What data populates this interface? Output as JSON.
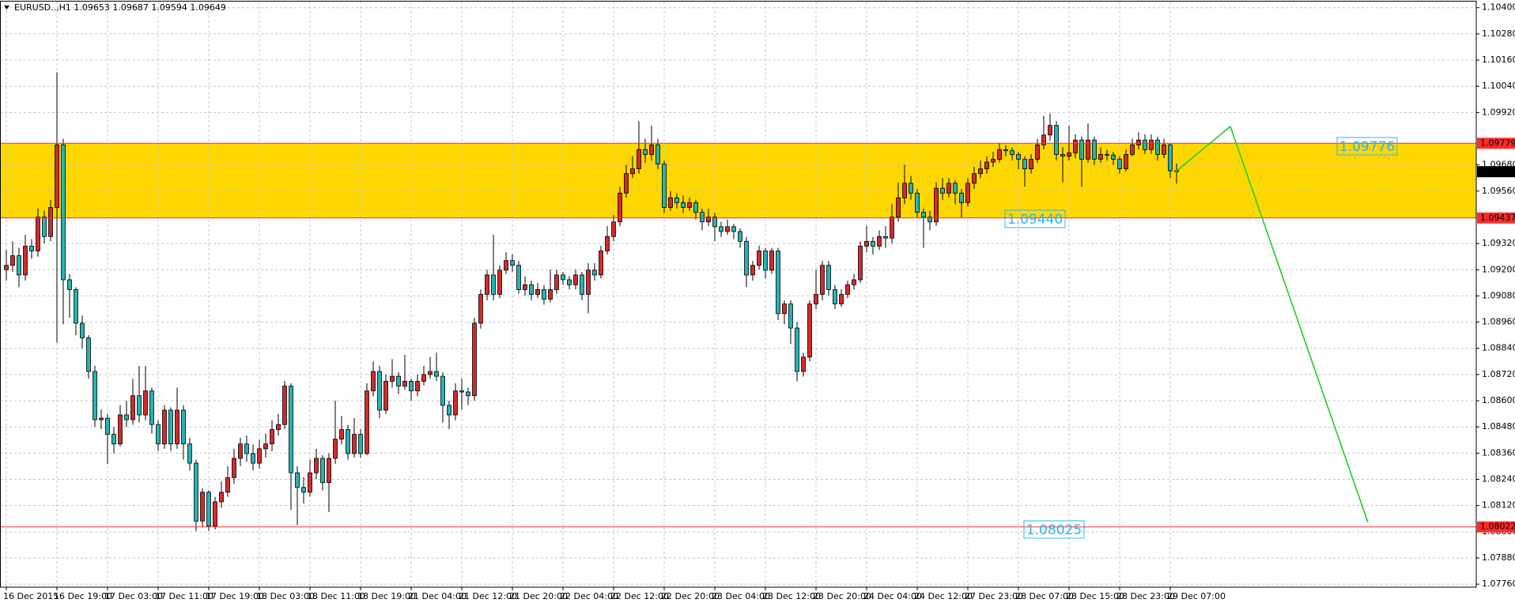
{
  "chart_data": {
    "type": "candlestick",
    "title": "EURUSD..,H1  1.09653 1.09687 1.09594 1.09649",
    "categories": [
      "16 Dec 2015",
      null,
      null,
      null,
      null,
      null,
      null,
      null,
      "16 Dec 19:00",
      null,
      null,
      null,
      null,
      null,
      null,
      null,
      "17 Dec 03:00",
      null,
      null,
      null,
      null,
      null,
      null,
      null,
      "17 Dec 11:00",
      null,
      null,
      null,
      null,
      null,
      null,
      null,
      "17 Dec 19:00",
      null,
      null,
      null,
      null,
      null,
      null,
      null,
      "18 Dec 03:00",
      null,
      null,
      null,
      null,
      null,
      null,
      null,
      "18 Dec 11:00",
      null,
      null,
      null,
      null,
      null,
      null,
      null,
      "18 Dec 19:00",
      null,
      null,
      null,
      null,
      null,
      null,
      null,
      "21 Dec 04:00",
      null,
      null,
      null,
      null,
      null,
      null,
      null,
      "21 Dec 12:00",
      null,
      null,
      null,
      null,
      null,
      null,
      null,
      "21 Dec 20:00",
      null,
      null,
      null,
      null,
      null,
      null,
      null,
      "22 Dec 04:00",
      null,
      null,
      null,
      null,
      null,
      null,
      null,
      "22 Dec 12:00",
      null,
      null,
      null,
      null,
      null,
      null,
      null,
      "22 Dec 20:00",
      null,
      null,
      null,
      null,
      null,
      null,
      null,
      "23 Dec 04:00",
      null,
      null,
      null,
      null,
      null,
      null,
      null,
      "23 Dec 12:00",
      null,
      null,
      null,
      null,
      null,
      null,
      null,
      "23 Dec 20:00",
      null,
      null,
      null,
      null,
      null,
      null,
      null,
      "24 Dec 04:00",
      null,
      null,
      null,
      null,
      null,
      null,
      null,
      "24 Dec 12:00",
      null,
      null,
      null,
      null,
      null,
      null,
      null,
      "27 Dec 23:00",
      null,
      null,
      null,
      null,
      null,
      null,
      null,
      "28 Dec 07:00",
      null,
      null,
      null,
      null,
      null,
      null,
      null,
      "28 Dec 15:00",
      null,
      null,
      null,
      null,
      null,
      null,
      null,
      "28 Dec 23:00",
      null,
      null,
      null,
      null,
      null,
      null,
      null,
      "29 Dec 07:00",
      null
    ],
    "open": [
      1.092,
      1.0922,
      1.09264,
      1.09176,
      1.09308,
      1.09286,
      1.09441,
      1.09352,
      1.09485,
      1.09772,
      1.09154,
      1.09109,
      1.08955,
      1.08888,
      1.08734,
      1.08513,
      1.0852,
      1.08446,
      1.08402,
      1.08535,
      1.08513,
      1.08623,
      1.08535,
      1.08645,
      1.08491,
      1.08402,
      1.08557,
      1.08402,
      1.08557,
      1.08402,
      1.08314,
      1.08049,
      1.08181,
      1.08026,
      1.08137,
      1.08181,
      1.08248,
      1.08336,
      1.08402,
      1.08358,
      1.08314,
      1.0838,
      1.08402,
      1.08468,
      1.08491,
      1.08667,
      1.0827,
      1.08203,
      1.08181,
      1.0827,
      1.08336,
      1.08225,
      1.08336,
      1.08424,
      1.08468,
      1.08358,
      1.08446,
      1.08358,
      1.08645,
      1.08734,
      1.08557,
      1.08689,
      1.08712,
      1.08667,
      1.08689,
      1.08645,
      1.08689,
      1.0872,
      1.08734,
      1.08712,
      1.08579,
      1.08535,
      1.08645,
      1.0864,
      1.08623,
      1.08955,
      1.09087,
      1.09176,
      1.09087,
      1.09198,
      1.09242,
      1.0922,
      1.09109,
      1.09131,
      1.09087,
      1.09109,
      1.09065,
      1.09109,
      1.09176,
      1.09154,
      1.09131,
      1.09176,
      1.09087,
      1.09198,
      1.09176,
      1.09286,
      1.09352,
      1.09419,
      1.09551,
      1.0964,
      1.09662,
      1.0975,
      1.09728,
      1.09772,
      1.09684,
      1.09485,
      1.09529,
      1.09507,
      1.09485,
      1.09507,
      1.09463,
      1.09419,
      1.09441,
      1.09397,
      1.09375,
      1.09397,
      1.09375,
      1.0933,
      1.09176,
      1.0922,
      1.09286,
      1.09198,
      1.09286,
      1.08999,
      1.09043,
      1.08933,
      1.08734,
      1.088,
      1.09043,
      1.09087,
      1.0922,
      1.09109,
      1.09043,
      1.09087,
      1.09131,
      1.09154,
      1.09308,
      1.0933,
      1.09308,
      1.09352,
      1.09345,
      1.09441,
      1.09529,
      1.09596,
      1.09551,
      1.09463,
      1.09441,
      1.09419,
      1.09573,
      1.09551,
      1.09596,
      1.09551,
      1.09507,
      1.09596,
      1.0964,
      1.09662,
      1.09693,
      1.09706,
      1.0975,
      1.09745,
      1.09728,
      1.09706,
      1.09662,
      1.09706,
      1.09772,
      1.09817,
      1.09861,
      1.09728,
      1.0972,
      1.09735,
      1.09794,
      1.09706,
      1.09794,
      1.09706,
      1.09728,
      1.09725,
      1.09706,
      1.09662,
      1.09728,
      1.09772,
      1.09794,
      1.0975,
      1.09794,
      1.09728,
      1.09772,
      1.09653
    ],
    "high": [
      1.0929,
      1.0933,
      1.093,
      1.0936,
      1.0934,
      1.0948,
      1.0947,
      1.0952,
      1.10104,
      1.098,
      1.0918,
      1.0912,
      1.0899,
      1.089,
      1.0876,
      1.0856,
      1.0854,
      1.0848,
      1.0858,
      1.086,
      1.087,
      1.0876,
      1.0876,
      1.0866,
      1.0851,
      1.0858,
      1.0857,
      1.0866,
      1.0858,
      1.0843,
      1.0833,
      1.082,
      1.0819,
      1.0816,
      1.0823,
      1.083,
      1.0838,
      1.0843,
      1.0844,
      1.084,
      1.0842,
      1.0845,
      1.0851,
      1.0854,
      1.0869,
      1.0868,
      1.083,
      1.0825,
      1.0833,
      1.0838,
      1.0835,
      1.0836,
      1.086,
      1.0853,
      1.0849,
      1.0852,
      1.0847,
      1.0868,
      1.0878,
      1.0876,
      1.0872,
      1.0879,
      1.0873,
      1.0881,
      1.087,
      1.0872,
      1.0876,
      1.088,
      1.0882,
      1.0873,
      1.086,
      1.0868,
      1.087,
      1.0866,
      1.0898,
      1.0911,
      1.092,
      1.0936,
      1.0922,
      1.0928,
      1.0927,
      1.0924,
      1.0917,
      1.0915,
      1.0914,
      1.0913,
      1.092,
      1.092,
      1.0919,
      1.0917,
      1.092,
      1.0919,
      1.0923,
      1.0923,
      1.0931,
      1.094,
      1.0945,
      1.0958,
      1.0968,
      1.0972,
      1.0988,
      1.098,
      1.0986,
      1.098,
      1.097,
      1.0956,
      1.0955,
      1.0954,
      1.0953,
      1.0952,
      1.0948,
      1.0948,
      1.0946,
      1.0942,
      1.0943,
      1.0941,
      1.0939,
      1.0935,
      1.0924,
      1.0931,
      1.093,
      1.093,
      1.093,
      1.0906,
      1.0906,
      1.0896,
      1.0882,
      1.0906,
      1.092,
      1.0924,
      1.0924,
      1.0913,
      1.0911,
      1.0915,
      1.0918,
      1.0933,
      1.094,
      1.0935,
      1.0938,
      1.094,
      1.095,
      1.096,
      1.0968,
      1.0963,
      1.0957,
      1.0948,
      1.0947,
      1.096,
      1.0962,
      1.0962,
      1.0961,
      1.0957,
      1.0962,
      1.0967,
      1.097,
      1.0972,
      1.0974,
      1.0978,
      1.0977,
      1.0976,
      1.0974,
      1.0972,
      1.0973,
      1.098,
      1.09905,
      1.09914,
      1.0988,
      1.0976,
      1.0986,
      1.0982,
      1.0981,
      1.0987,
      1.0981,
      1.0976,
      1.0975,
      1.0974,
      1.0972,
      1.0975,
      1.098,
      1.0983,
      1.0982,
      1.0982,
      1.0981,
      1.098,
      1.0978,
      1.09687
    ],
    "low": [
      1.0915,
      1.0919,
      1.0912,
      1.0915,
      1.0925,
      1.0926,
      1.0932,
      1.0933,
      1.08866,
      1.0895,
      1.0898,
      1.089,
      1.0884,
      1.087,
      1.0848,
      1.0847,
      1.0831,
      1.0836,
      1.0839,
      1.0848,
      1.0849,
      1.085,
      1.0851,
      1.0845,
      1.0837,
      1.0838,
      1.0837,
      1.0838,
      1.0833,
      1.0828,
      1.08004,
      1.0802,
      1.08004,
      1.0801,
      1.0811,
      1.0816,
      1.0822,
      1.083,
      1.0832,
      1.0828,
      1.0829,
      1.0834,
      1.0837,
      1.0844,
      1.0847,
      1.081,
      1.0803,
      1.0813,
      1.0816,
      1.0824,
      1.0819,
      1.0809,
      1.0831,
      1.084,
      1.0833,
      1.0834,
      1.0834,
      1.0835,
      1.0862,
      1.0852,
      1.0854,
      1.0866,
      1.0863,
      1.0865,
      1.086,
      1.0862,
      1.0867,
      1.087,
      1.0869,
      1.085,
      1.0847,
      1.0851,
      1.0856,
      1.0858,
      1.086,
      1.0893,
      1.0906,
      1.0906,
      1.0907,
      1.0918,
      1.0919,
      1.0909,
      1.0908,
      1.0906,
      1.0907,
      1.0904,
      1.0905,
      1.0909,
      1.0913,
      1.0911,
      1.0911,
      1.0906,
      1.09,
      1.0915,
      1.0916,
      1.0927,
      1.0933,
      1.094,
      1.0953,
      1.0962,
      1.0964,
      1.0969,
      1.097,
      1.0966,
      1.0946,
      1.0947,
      1.0948,
      1.0946,
      1.0947,
      1.0943,
      1.0938,
      1.094,
      1.0933,
      1.0935,
      1.0936,
      1.0934,
      1.093,
      1.0912,
      1.0915,
      1.092,
      1.0916,
      1.0918,
      1.0897,
      1.0895,
      1.0886,
      1.08689,
      1.0871,
      1.0878,
      1.0902,
      1.0906,
      1.0908,
      1.0902,
      1.0903,
      1.0907,
      1.0911,
      1.0914,
      1.0928,
      1.0927,
      1.0929,
      1.093,
      1.0932,
      1.0942,
      1.095,
      1.0952,
      1.0944,
      1.093,
      1.0938,
      1.094,
      1.0952,
      1.0953,
      1.095,
      1.0944,
      1.0949,
      1.0957,
      1.0962,
      1.0964,
      1.0967,
      1.0969,
      1.0972,
      1.097,
      1.0966,
      1.0958,
      1.0964,
      1.0969,
      1.0975,
      1.0979,
      1.097,
      1.096,
      1.097,
      1.0971,
      1.0958,
      1.0969,
      1.0968,
      1.0969,
      1.097,
      1.0968,
      1.0964,
      1.0965,
      1.0972,
      1.0975,
      1.0973,
      1.0973,
      1.097,
      1.0971,
      1.0962,
      1.09594
    ],
    "close": [
      1.0922,
      1.09264,
      1.09176,
      1.09308,
      1.09286,
      1.09441,
      1.09352,
      1.09485,
      1.09772,
      1.09154,
      1.09109,
      1.08955,
      1.08888,
      1.08734,
      1.08513,
      1.0852,
      1.08446,
      1.08402,
      1.08535,
      1.08513,
      1.08623,
      1.08535,
      1.08645,
      1.08491,
      1.08402,
      1.08557,
      1.08402,
      1.08557,
      1.08402,
      1.08314,
      1.08049,
      1.08181,
      1.08026,
      1.08137,
      1.08181,
      1.08248,
      1.08336,
      1.08402,
      1.08358,
      1.08314,
      1.0838,
      1.08402,
      1.08468,
      1.08491,
      1.08667,
      1.0827,
      1.08203,
      1.08181,
      1.0827,
      1.08336,
      1.08225,
      1.08336,
      1.08424,
      1.08468,
      1.08358,
      1.08446,
      1.08358,
      1.08645,
      1.08734,
      1.08557,
      1.08689,
      1.08712,
      1.08667,
      1.08689,
      1.08645,
      1.08689,
      1.0872,
      1.08734,
      1.08712,
      1.08579,
      1.08535,
      1.08645,
      1.0864,
      1.08623,
      1.08955,
      1.09087,
      1.09176,
      1.09087,
      1.09198,
      1.09242,
      1.0922,
      1.09109,
      1.09131,
      1.09087,
      1.09109,
      1.09065,
      1.09109,
      1.09176,
      1.09154,
      1.09131,
      1.09176,
      1.09087,
      1.09198,
      1.09176,
      1.09286,
      1.09352,
      1.09419,
      1.09551,
      1.0964,
      1.09662,
      1.0975,
      1.09728,
      1.09772,
      1.09684,
      1.09485,
      1.09529,
      1.09507,
      1.09485,
      1.09507,
      1.09463,
      1.09419,
      1.09441,
      1.09397,
      1.09375,
      1.09397,
      1.09375,
      1.0933,
      1.09176,
      1.0922,
      1.09286,
      1.09198,
      1.09286,
      1.08999,
      1.09043,
      1.08933,
      1.08734,
      1.088,
      1.09043,
      1.09087,
      1.0922,
      1.09109,
      1.09043,
      1.09087,
      1.09131,
      1.09154,
      1.09308,
      1.0933,
      1.09308,
      1.09352,
      1.09345,
      1.09441,
      1.09529,
      1.09596,
      1.09551,
      1.09463,
      1.09441,
      1.09419,
      1.09573,
      1.09551,
      1.09596,
      1.09551,
      1.09507,
      1.09596,
      1.0964,
      1.09662,
      1.09693,
      1.09706,
      1.0975,
      1.09745,
      1.09728,
      1.09706,
      1.09662,
      1.09706,
      1.09772,
      1.09817,
      1.09861,
      1.09728,
      1.0972,
      1.09735,
      1.09794,
      1.09706,
      1.09794,
      1.09706,
      1.09728,
      1.09725,
      1.09706,
      1.09662,
      1.09728,
      1.09772,
      1.09794,
      1.0975,
      1.09794,
      1.09728,
      1.09772,
      1.09653,
      1.09649
    ],
    "bull_color": "#d42a2a",
    "bear_color": "#26b3b3",
    "ylim": [
      1.07746,
      1.10428
    ],
    "yticks": [
      {
        "value": 1.104,
        "label": "1.10400"
      },
      {
        "value": 1.1028,
        "label": "1.10280"
      },
      {
        "value": 1.1016,
        "label": "1.10160"
      },
      {
        "value": 1.1004,
        "label": "1.10040"
      },
      {
        "value": 1.0992,
        "label": "1.09920"
      },
      {
        "value": 1.0968,
        "label": "1.09680"
      },
      {
        "value": 1.0956,
        "label": "1.09560"
      },
      {
        "value": 1.0932,
        "label": "1.09320"
      },
      {
        "value": 1.092,
        "label": "1.09200"
      },
      {
        "value": 1.0908,
        "label": "1.09080"
      },
      {
        "value": 1.0896,
        "label": "1.08960"
      },
      {
        "value": 1.0884,
        "label": "1.08840"
      },
      {
        "value": 1.0872,
        "label": "1.08720"
      },
      {
        "value": 1.086,
        "label": "1.08600"
      },
      {
        "value": 1.0848,
        "label": "1.08480"
      },
      {
        "value": 1.0836,
        "label": "1.08360"
      },
      {
        "value": 1.0824,
        "label": "1.08240"
      },
      {
        "value": 1.0812,
        "label": "1.08120"
      },
      {
        "value": 1.08,
        "label": "1.08000"
      },
      {
        "value": 1.0788,
        "label": "1.07880"
      },
      {
        "value": 1.0776,
        "label": "1.07760"
      }
    ],
    "grid": true,
    "levels": [
      1.09779,
      1.09437,
      1.08022
    ],
    "level_color": "#ff2b2b",
    "zone_color": "#ffd700",
    "bid": 1.09649,
    "annotations": [
      "1.09776",
      "1.09440",
      "1.08025"
    ]
  }
}
